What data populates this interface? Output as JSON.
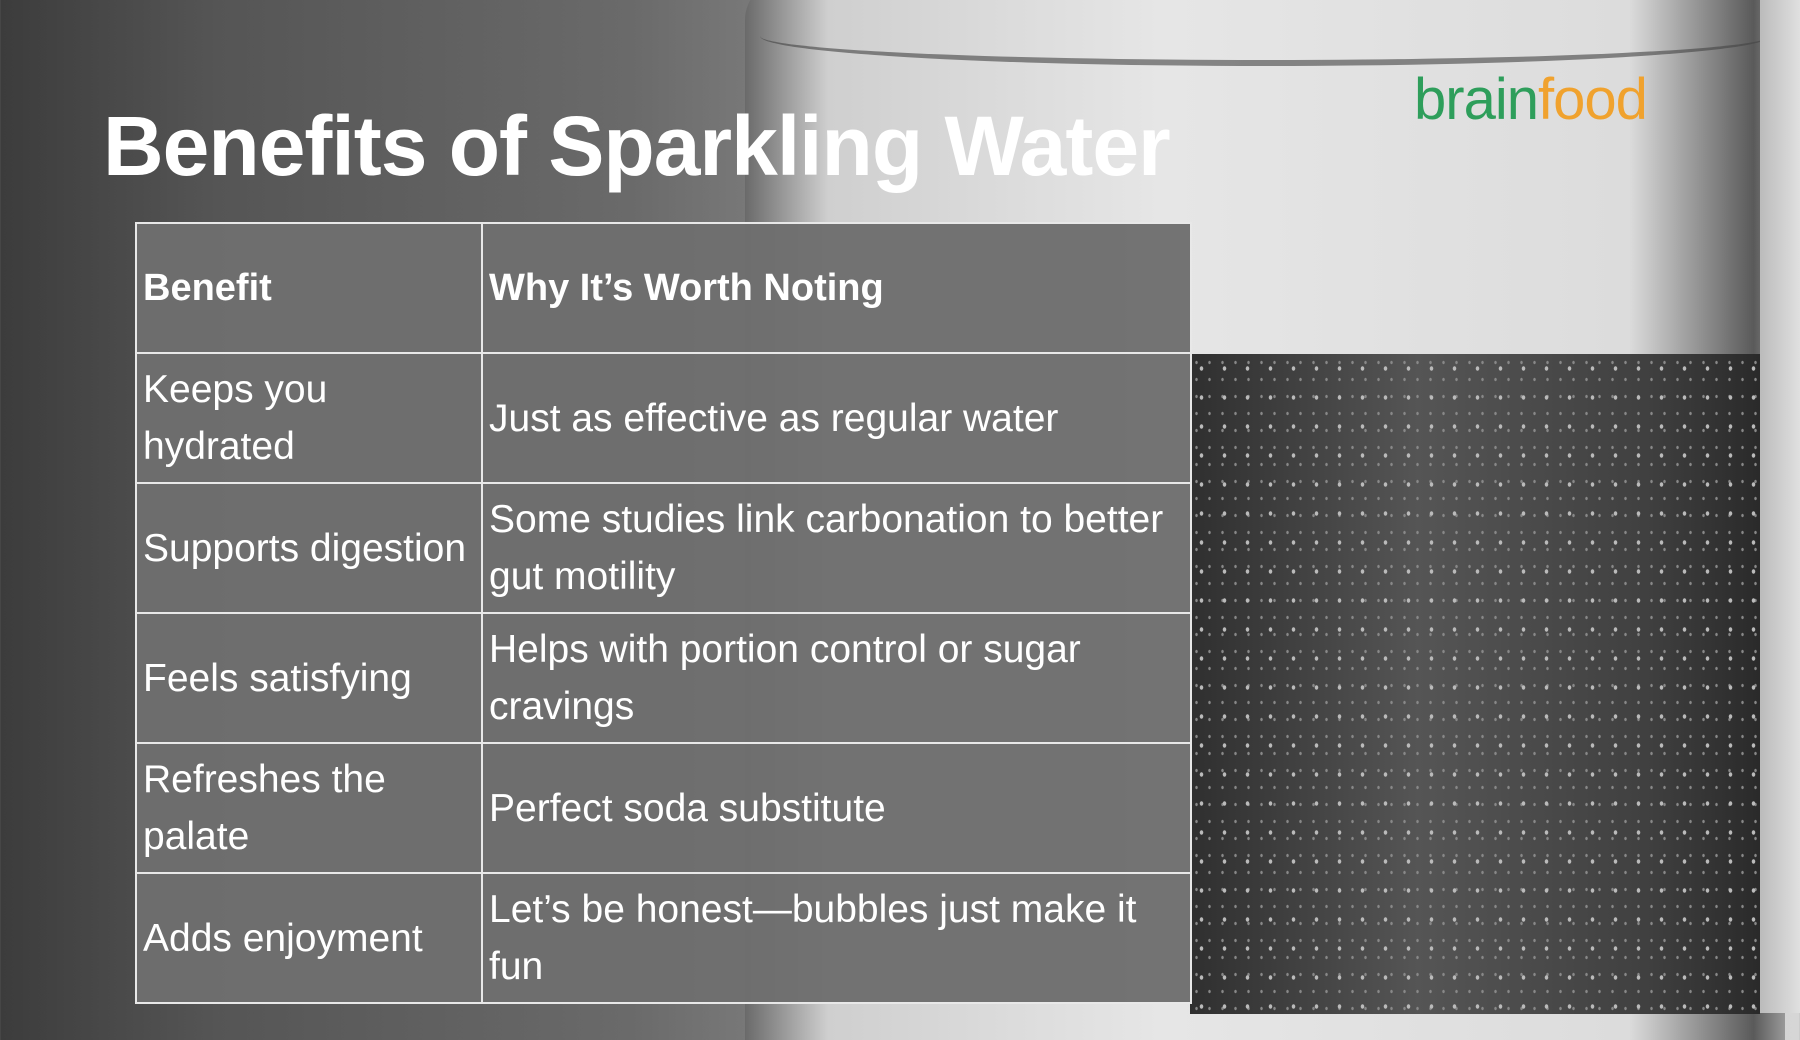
{
  "title": "Benefits of Sparkling Water",
  "logo": {
    "part1": "brain",
    "part2": "food",
    "colors": {
      "brain": "#2e9e5b",
      "food": "#f0a22e"
    }
  },
  "table": {
    "headers": [
      "Benefit",
      "Why It’s Worth Noting"
    ],
    "rows": [
      [
        "Keeps you hydrated",
        "Just as effective as regular water"
      ],
      [
        "Supports digestion",
        "Some studies link carbonation to better gut motility"
      ],
      [
        "Feels satisfying",
        "Helps with portion control or sugar cravings"
      ],
      [
        "Refreshes the palate",
        "Perfect soda substitute"
      ],
      [
        "Adds enjoyment",
        "Let’s be honest—bubbles just make it fun"
      ]
    ]
  }
}
